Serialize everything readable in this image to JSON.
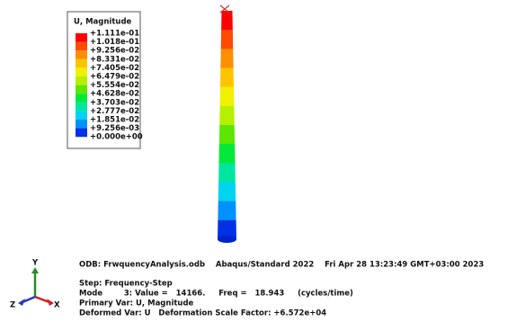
{
  "legend": {
    "title": "U, Magnitude",
    "labels": [
      "+1.111e-01",
      "+1.018e-01",
      "+9.256e-02",
      "+8.331e-02",
      "+7.405e-02",
      "+6.479e-02",
      "+5.554e-02",
      "+4.628e-02",
      "+3.703e-02",
      "+2.777e-02",
      "+1.851e-02",
      "+9.256e-03",
      "+0.000e+00"
    ]
  },
  "info": {
    "odb": "ODB: FrwquencyAnalysis.odb    Abaqus/Standard 2022    Fri Apr 28 13:23:49 GMT+03:00 2023",
    "step": "Step: Frequency-Step",
    "mode": "Mode        3: Value =   14166.     Freq =   18.943     (cycles/time)",
    "primary": "Primary Var: U, Magnitude",
    "deformed": "Deformed Var: U   Deformation Scale Factor: +6.572e+04"
  },
  "triad": {
    "y": "Y",
    "z": "Z",
    "x": "X"
  }
}
